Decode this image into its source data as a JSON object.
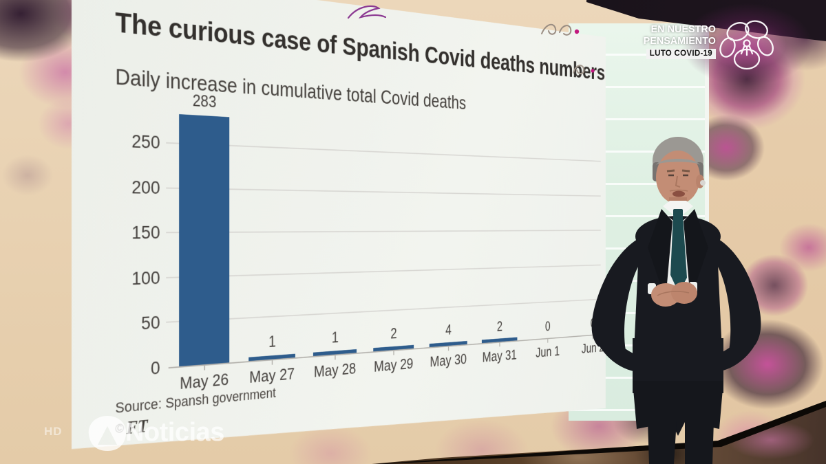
{
  "chart_data": {
    "type": "bar",
    "title": "The curious case of Spanish Covid deaths numbers",
    "subtitle": "Daily increase in cumulative total Covid deaths",
    "categories": [
      "May 26",
      "May 27",
      "May 28",
      "May 29",
      "May 30",
      "May 31",
      "Jun 1",
      "Jun 2"
    ],
    "values": [
      283,
      1,
      1,
      2,
      4,
      2,
      0,
      0
    ],
    "yticks": [
      0,
      50,
      100,
      150,
      200,
      250
    ],
    "ylim": [
      0,
      283
    ],
    "xlabel": "",
    "ylabel": "",
    "grid": true,
    "legend": "none",
    "bar_color": "#2e5c8c",
    "source": "Source: Spansh government",
    "brand_copyright": "©",
    "brand": "FT"
  },
  "overlays": {
    "tribute": {
      "line1": "EN NUESTRO",
      "line2": "PENSAMIENTO",
      "tag": "LUTO COVID-19",
      "flower_icon": "pansy-flower"
    },
    "channel": {
      "hd": "HD",
      "name": "Noticias",
      "logo_icon": "antena3"
    }
  }
}
